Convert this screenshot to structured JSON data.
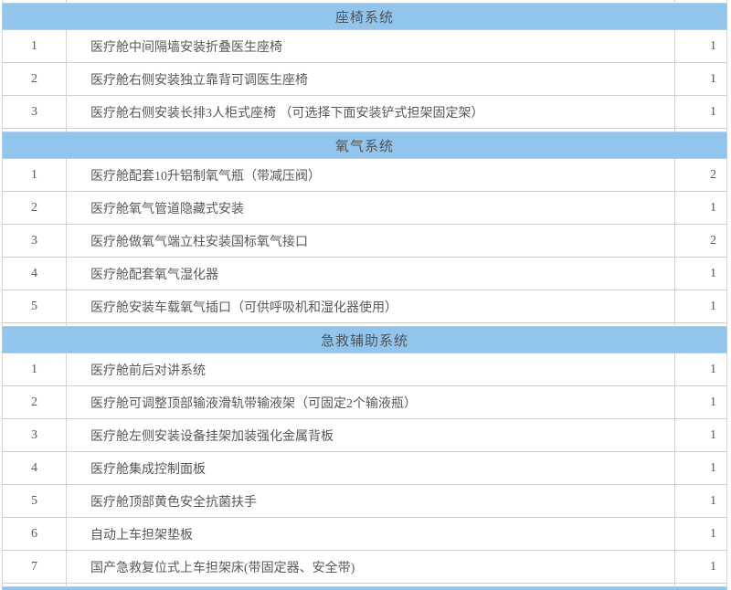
{
  "table": {
    "colors": {
      "header_bg": "#92c5ec",
      "text": "#595959",
      "border": "#d6d6d6",
      "row_bg": "#ffffff"
    },
    "sections": [
      {
        "title": "座椅系统",
        "rows": [
          {
            "num": "1",
            "desc": "医疗舱中间隔墙安装折叠医生座椅",
            "qty": "1"
          },
          {
            "num": "2",
            "desc": "医疗舱右侧安装独立靠背可调医生座椅",
            "qty": "1"
          },
          {
            "num": "3",
            "desc": "医疗舱右侧安装长排3人柜式座椅 （可选择下面安装铲式担架固定架）",
            "qty": "1"
          }
        ]
      },
      {
        "title": "氧气系统",
        "rows": [
          {
            "num": "1",
            "desc": "医疗舱配套10升铝制氧气瓶（带减压阀）",
            "qty": "2"
          },
          {
            "num": "2",
            "desc": "医疗舱氧气管道隐藏式安装",
            "qty": "1"
          },
          {
            "num": "3",
            "desc": "医疗舱做氧气端立柱安装国标氧气接口",
            "qty": "2"
          },
          {
            "num": "4",
            "desc": "医疗舱配套氧气湿化器",
            "qty": "1"
          },
          {
            "num": "5",
            "desc": "医疗舱安装车载氧气插口（可供呼吸机和湿化器使用）",
            "qty": "1"
          }
        ]
      },
      {
        "title": "急救辅助系统",
        "rows": [
          {
            "num": "1",
            "desc": "医疗舱前后对讲系统",
            "qty": "1"
          },
          {
            "num": "2",
            "desc": "医疗舱可调整顶部输液滑轨带输液架（可固定2个输液瓶）",
            "qty": "1"
          },
          {
            "num": "3",
            "desc": "医疗舱左侧安装设备挂架加装强化金属背板",
            "qty": "1"
          },
          {
            "num": "4",
            "desc": "医疗舱集成控制面板",
            "qty": "1"
          },
          {
            "num": "5",
            "desc": "医疗舱顶部黄色安全抗菌扶手",
            "qty": "1"
          },
          {
            "num": "6",
            "desc": "自动上车担架垫板",
            "qty": "1"
          },
          {
            "num": "7",
            "desc": "国产急救复位式上车担架床(带固定器、安全带)",
            "qty": "1"
          }
        ]
      }
    ]
  }
}
